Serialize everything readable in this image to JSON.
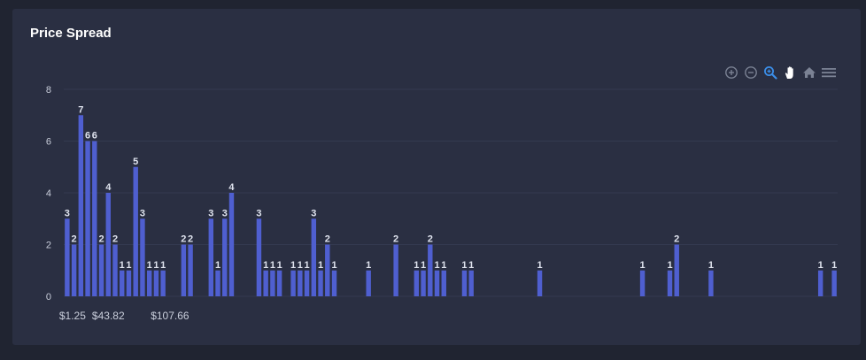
{
  "title": "Price Spread",
  "toolbar": {
    "icons": [
      "zoom-in-icon",
      "zoom-out-icon",
      "selection-zoom-icon",
      "pan-hand-icon",
      "home-reset-icon",
      "menu-icon"
    ],
    "active_icon": "selection-zoom-icon"
  },
  "colors": {
    "background": "#202431",
    "card": "#2a2f42",
    "bar": "#4f5fd0",
    "grid": "#343a50",
    "axis_text": "#c9cedb",
    "label_text": "#dfe3ee",
    "icon": "#7b8294",
    "icon_active": "#3b8ee8"
  },
  "chart_data": {
    "type": "bar",
    "ylim": [
      0,
      8
    ],
    "yticks": [
      "0",
      "2",
      "4",
      "6",
      "8"
    ],
    "xtick_labels": [
      "$1.25",
      "$43.82",
      "$107.66"
    ],
    "grid": true,
    "values": [
      3,
      2,
      7,
      6,
      6,
      2,
      4,
      2,
      1,
      1,
      5,
      3,
      1,
      1,
      1,
      0,
      0,
      2,
      2,
      0,
      0,
      3,
      1,
      3,
      4,
      0,
      0,
      0,
      3,
      1,
      1,
      1,
      0,
      1,
      1,
      1,
      3,
      1,
      2,
      1,
      0,
      0,
      0,
      0,
      1,
      0,
      0,
      0,
      2,
      0,
      0,
      1,
      1,
      2,
      1,
      1,
      0,
      0,
      1,
      1,
      0,
      0,
      0,
      0,
      0,
      0,
      0,
      0,
      0,
      1,
      0,
      0,
      0,
      0,
      0,
      0,
      0,
      0,
      0,
      0,
      0,
      0,
      0,
      0,
      1,
      0,
      0,
      0,
      1,
      2,
      0,
      0,
      0,
      0,
      1,
      0,
      0,
      0,
      0,
      0,
      0,
      0,
      0,
      0,
      0,
      0,
      0,
      0,
      0,
      0,
      1,
      0,
      1
    ]
  }
}
